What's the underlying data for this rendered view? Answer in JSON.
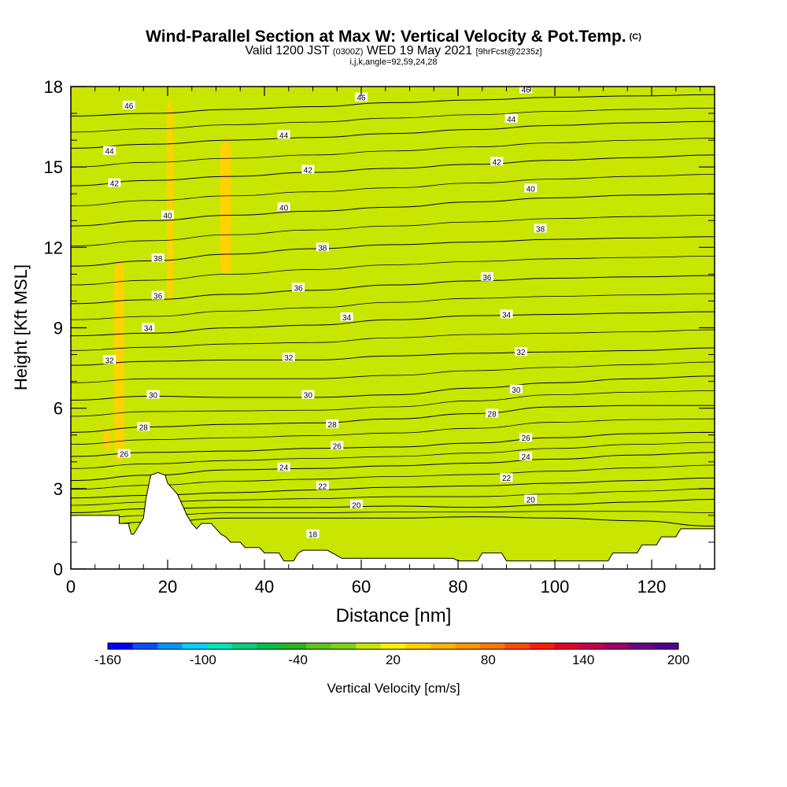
{
  "title": {
    "main": "Wind-Parallel Section at Max W: Vertical Velocity & Pot.Temp.",
    "copyright": "(C)",
    "valid_prefix": "Valid 1200 JST",
    "valid_utc": "(0300Z)",
    "valid_date": "WED 19 May 2021",
    "forecast": "[9hrFcst@2235z]",
    "indices": "i,j,k,angle=92,59,24,28"
  },
  "chart_data": {
    "type": "heatmap",
    "xlabel": "Distance [nm]",
    "ylabel": "Height [Kft MSL]",
    "xlim": [
      0,
      133
    ],
    "ylim": [
      0,
      18
    ],
    "x_ticks": [
      0,
      20,
      40,
      60,
      80,
      100,
      120
    ],
    "y_ticks": [
      0,
      3,
      6,
      9,
      12,
      15,
      18
    ],
    "colorbar": {
      "label": "Vertical Velocity [cm/s]",
      "ticks": [
        -160,
        -100,
        -40,
        20,
        80,
        140,
        200
      ],
      "min": -160,
      "max": 200,
      "colors": [
        "#0000ff",
        "#0050ff",
        "#0096ff",
        "#00d2ff",
        "#00e6b4",
        "#00d27d",
        "#00be46",
        "#28b41e",
        "#5ac81e",
        "#82d214",
        "#c8e600",
        "#fff000",
        "#ffd200",
        "#ffb400",
        "#ff9600",
        "#ff7800",
        "#ff4b00",
        "#ff1e00",
        "#e60028",
        "#c8004b",
        "#a00064",
        "#6e0082",
        "#500096"
      ]
    },
    "theta_contours": [
      {
        "label": "18",
        "y": [
          1.55,
          1.75,
          1.9,
          1.9,
          1.9,
          1.95,
          1.9,
          1.8,
          1.6
        ]
      },
      {
        "label": "20",
        "y": [
          2.1,
          2.25,
          2.3,
          2.3,
          2.35,
          2.3,
          2.4,
          2.5,
          2.6
        ]
      },
      {
        "label": "22",
        "y": [
          2.65,
          2.75,
          2.85,
          2.95,
          3.05,
          3.1,
          3.2,
          3.3,
          3.4
        ]
      },
      {
        "label": "24",
        "y": [
          3.3,
          3.5,
          3.7,
          3.75,
          3.85,
          3.95,
          4.1,
          4.25,
          4.35
        ]
      },
      {
        "label": "26",
        "y": [
          4.2,
          4.35,
          4.4,
          4.5,
          4.55,
          4.7,
          4.9,
          5.05,
          5.1
        ]
      },
      {
        "label": "28",
        "y": [
          5.1,
          5.3,
          5.4,
          5.45,
          5.6,
          5.8,
          6.05,
          6.1,
          6.1
        ]
      },
      {
        "label": "30",
        "y": [
          6.3,
          6.45,
          6.4,
          6.4,
          6.5,
          6.75,
          6.95,
          7.1,
          7.2
        ]
      },
      {
        "label": "32",
        "y": [
          7.6,
          7.75,
          7.8,
          7.8,
          7.95,
          8.05,
          8.1,
          8.15,
          8.25
        ]
      },
      {
        "label": "34",
        "y": [
          8.7,
          8.8,
          9.0,
          9.1,
          9.3,
          9.45,
          9.5,
          9.55,
          9.6
        ]
      },
      {
        "label": "36",
        "y": [
          9.9,
          10.05,
          10.25,
          10.4,
          10.6,
          10.75,
          10.85,
          10.9,
          10.95
        ]
      },
      {
        "label": "38",
        "y": [
          11.3,
          11.5,
          11.75,
          11.95,
          12.1,
          12.2,
          12.3,
          12.35,
          12.4
        ]
      },
      {
        "label": "40",
        "y": [
          12.8,
          13.0,
          13.2,
          13.35,
          13.5,
          13.7,
          13.85,
          13.95,
          14.0
        ]
      },
      {
        "label": "42",
        "y": [
          14.3,
          14.5,
          14.65,
          14.8,
          14.95,
          15.1,
          15.25,
          15.35,
          15.45
        ]
      },
      {
        "label": "44",
        "y": [
          15.7,
          15.85,
          16.0,
          16.1,
          16.25,
          16.4,
          16.55,
          16.65,
          16.7
        ]
      },
      {
        "label": "46",
        "y": [
          16.9,
          17.0,
          17.15,
          17.25,
          17.4,
          17.5,
          17.6,
          17.65,
          17.7
        ]
      }
    ],
    "contour_x": [
      0,
      16.6,
      33.3,
      50,
      66.6,
      83.3,
      100,
      116.6,
      133
    ],
    "contour_labels": [
      {
        "text": "46",
        "x": 12,
        "y": 17.3
      },
      {
        "text": "46",
        "x": 60,
        "y": 17.6
      },
      {
        "text": "46",
        "x": 94,
        "y": 17.9
      },
      {
        "text": "44",
        "x": 8,
        "y": 15.6
      },
      {
        "text": "44",
        "x": 44,
        "y": 16.2
      },
      {
        "text": "44",
        "x": 91,
        "y": 16.8
      },
      {
        "text": "42",
        "x": 9,
        "y": 14.4
      },
      {
        "text": "42",
        "x": 49,
        "y": 14.9
      },
      {
        "text": "42",
        "x": 88,
        "y": 15.2
      },
      {
        "text": "40",
        "x": 20,
        "y": 13.2
      },
      {
        "text": "40",
        "x": 44,
        "y": 13.5
      },
      {
        "text": "40",
        "x": 95,
        "y": 14.2
      },
      {
        "text": "38",
        "x": 18,
        "y": 11.6
      },
      {
        "text": "38",
        "x": 52,
        "y": 12.0
      },
      {
        "text": "38",
        "x": 97,
        "y": 12.7
      },
      {
        "text": "36",
        "x": 18,
        "y": 10.2
      },
      {
        "text": "36",
        "x": 47,
        "y": 10.5
      },
      {
        "text": "36",
        "x": 86,
        "y": 10.9
      },
      {
        "text": "34",
        "x": 16,
        "y": 9.0
      },
      {
        "text": "34",
        "x": 57,
        "y": 9.4
      },
      {
        "text": "34",
        "x": 90,
        "y": 9.5
      },
      {
        "text": "32",
        "x": 8,
        "y": 7.8
      },
      {
        "text": "32",
        "x": 45,
        "y": 7.9
      },
      {
        "text": "32",
        "x": 93,
        "y": 8.1
      },
      {
        "text": "30",
        "x": 17,
        "y": 6.5
      },
      {
        "text": "30",
        "x": 49,
        "y": 6.5
      },
      {
        "text": "30",
        "x": 92,
        "y": 6.7
      },
      {
        "text": "28",
        "x": 15,
        "y": 5.3
      },
      {
        "text": "28",
        "x": 54,
        "y": 5.4
      },
      {
        "text": "28",
        "x": 87,
        "y": 5.8
      },
      {
        "text": "26",
        "x": 11,
        "y": 4.3
      },
      {
        "text": "26",
        "x": 55,
        "y": 4.6
      },
      {
        "text": "26",
        "x": 94,
        "y": 4.9
      },
      {
        "text": "24",
        "x": 44,
        "y": 3.8
      },
      {
        "text": "24",
        "x": 94,
        "y": 4.2
      },
      {
        "text": "22",
        "x": 52,
        "y": 3.1
      },
      {
        "text": "22",
        "x": 90,
        "y": 3.4
      },
      {
        "text": "20",
        "x": 59,
        "y": 2.4
      },
      {
        "text": "20",
        "x": 95,
        "y": 2.6
      },
      {
        "text": "18",
        "x": 50,
        "y": 1.3
      }
    ],
    "terrain_kft": [
      [
        0,
        2.0
      ],
      [
        10,
        2.0
      ],
      [
        10,
        1.7
      ],
      [
        12,
        1.7
      ],
      [
        12,
        1.6
      ],
      [
        12.5,
        1.3
      ],
      [
        13,
        1.3
      ],
      [
        14,
        1.6
      ],
      [
        15,
        1.9
      ],
      [
        15.5,
        2.6
      ],
      [
        16.5,
        3.5
      ],
      [
        18,
        3.6
      ],
      [
        19.5,
        3.5
      ],
      [
        20,
        3.2
      ],
      [
        21,
        3.0
      ],
      [
        22,
        2.8
      ],
      [
        23,
        2.4
      ],
      [
        24,
        2.0
      ],
      [
        25,
        1.7
      ],
      [
        26,
        1.5
      ],
      [
        27,
        1.7
      ],
      [
        29,
        1.7
      ],
      [
        30,
        1.5
      ],
      [
        31,
        1.3
      ],
      [
        32,
        1.2
      ],
      [
        33,
        1.0
      ],
      [
        35,
        1.0
      ],
      [
        36,
        0.8
      ],
      [
        39,
        0.8
      ],
      [
        40,
        0.6
      ],
      [
        43,
        0.6
      ],
      [
        44,
        0.3
      ],
      [
        46,
        0.3
      ],
      [
        47,
        0.6
      ],
      [
        48,
        0.7
      ],
      [
        53,
        0.7
      ],
      [
        56,
        0.4
      ],
      [
        79,
        0.4
      ],
      [
        80,
        0.3
      ],
      [
        84,
        0.3
      ],
      [
        85,
        0.6
      ],
      [
        89,
        0.6
      ],
      [
        90,
        0.3
      ],
      [
        111,
        0.3
      ],
      [
        112,
        0.6
      ],
      [
        117,
        0.6
      ],
      [
        118,
        0.9
      ],
      [
        121,
        0.9
      ],
      [
        122,
        1.2
      ],
      [
        125,
        1.2
      ],
      [
        126,
        1.5
      ],
      [
        133,
        1.5
      ]
    ],
    "w_field_notes": "mostly weak updraft/downdraft 0 to 20 cm/s",
    "updraft_bands": [
      {
        "x": 10,
        "w": 2,
        "ybot": 4.0,
        "ytop": 11.5,
        "value": 30
      },
      {
        "x": 20.5,
        "w": 1.2,
        "ybot": 10.0,
        "ytop": 17.5,
        "value": 30
      },
      {
        "x": 32,
        "w": 2.4,
        "ybot": 11.0,
        "ytop": 16.0,
        "value": 30
      },
      {
        "x": 7.5,
        "w": 1.6,
        "ybot": 4.4,
        "ytop": 5.3,
        "value": 30
      }
    ],
    "downdraft_bands": [
      {
        "x": 3,
        "w": 6,
        "ybot": 3.0,
        "ytop": 18,
        "value": 0
      },
      {
        "x": 13,
        "w": 3,
        "ybot": 5.5,
        "ytop": 18,
        "value": 0
      },
      {
        "x": 20,
        "w": 2.4,
        "ybot": 3.5,
        "ytop": 10,
        "value": 0
      },
      {
        "x": 26,
        "w": 3,
        "ybot": 2.0,
        "ytop": 18,
        "value": 0
      },
      {
        "x": 37,
        "w": 6,
        "ybot": 1.0,
        "ytop": 15.5,
        "value": 0
      },
      {
        "x": 50,
        "w": 8,
        "ybot": 6.0,
        "ytop": 18,
        "value": 0
      },
      {
        "x": 60,
        "w": 12,
        "ybot": 1.0,
        "ytop": 18,
        "value": 0
      },
      {
        "x": 72,
        "w": 4,
        "ybot": 8.0,
        "ytop": 15,
        "value": 0
      },
      {
        "x": 84,
        "w": 6,
        "ybot": 1.2,
        "ytop": 18,
        "value": 0
      },
      {
        "x": 95,
        "w": 10,
        "ybot": 6.0,
        "ytop": 18,
        "value": 0
      },
      {
        "x": 110,
        "w": 8,
        "ybot": 1.2,
        "ytop": 18,
        "value": 0
      },
      {
        "x": 124,
        "w": 6,
        "ybot": 2.5,
        "ytop": 18,
        "value": 0
      },
      {
        "x": 131,
        "w": 2,
        "ybot": 1.5,
        "ytop": 6,
        "value": 0
      }
    ]
  }
}
